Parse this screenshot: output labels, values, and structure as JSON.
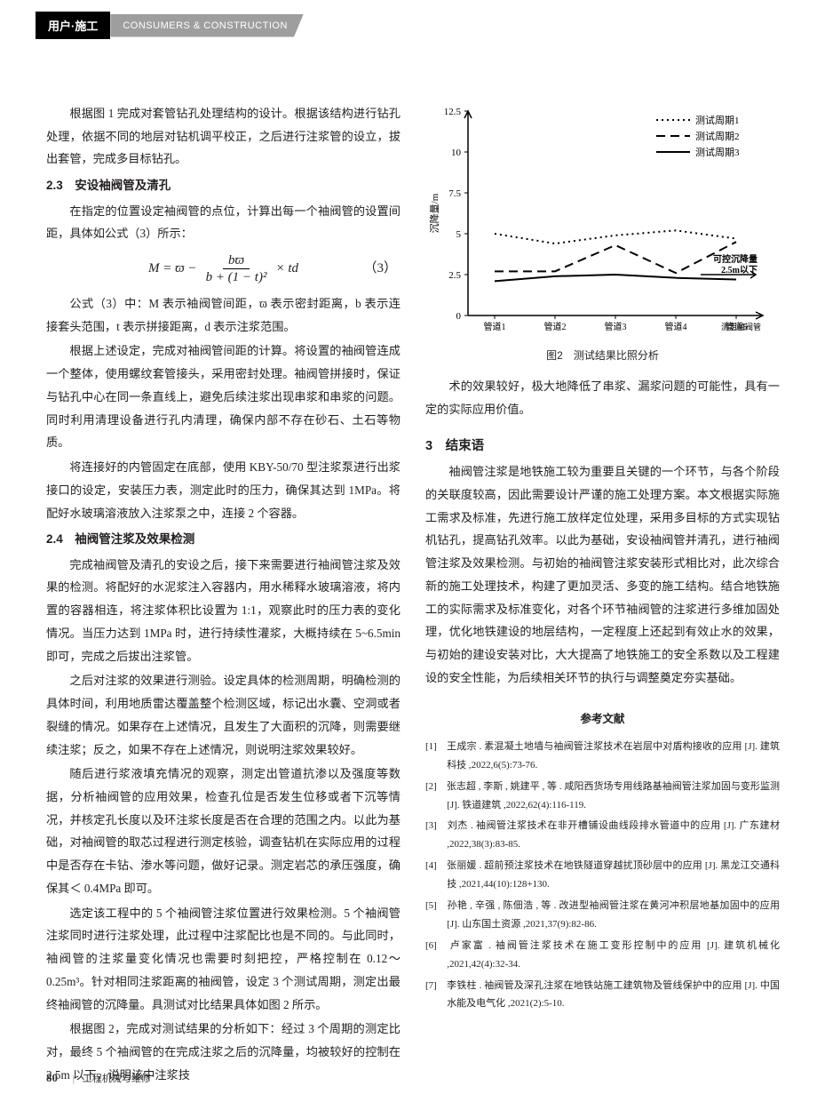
{
  "header": {
    "label": "用户·施工",
    "sub": "CONSUMERS & CONSTRUCTION"
  },
  "left_column": {
    "p1": "根据图 1 完成对套管钻孔处理结构的设计。根据该结构进行钻孔处理，依据不同的地层对钻机调平校正，之后进行注浆管的设立，拔出套管，完成多目标钻孔。",
    "h23": "2.3　安设袖阀管及清孔",
    "p2": "在指定的位置设定袖阀管的点位，计算出每一个袖阀管的设置间距，具体如公式（3）所示：",
    "formula": {
      "lhs": "M = ϖ −",
      "num": "bϖ",
      "den": "b + (1 − t)²",
      "tail": " × td",
      "num_label": "（3）"
    },
    "p3": "公式（3）中：M 表示袖阀管间距，ϖ 表示密封距离，b 表示连接套头范围，t 表示拼接距离，d 表示注浆范围。",
    "p4": "根据上述设定，完成对袖阀管间距的计算。将设置的袖阀管连成一个整体，使用螺纹套管接头，采用密封处理。袖阀管拼接时，保证与钻孔中心在同一条直线上，避免后续注浆出现串浆和串浆的问题。同时利用清理设备进行孔内清理，确保内部不存在砂石、土石等物质。",
    "p5": "将连接好的内管固定在底部，使用 KBY-50/70 型注浆泵进行出浆接口的设定，安装压力表，测定此时的压力，确保其达到 1MPa。将配好水玻璃溶液放入注浆泵之中，连接 2 个容器。",
    "h24": "2.4　袖阀管注浆及效果检测",
    "p6": "完成袖阀管及清孔的安设之后，接下来需要进行袖阀管注浆及效果的检测。将配好的水泥浆注入容器内，用水稀释水玻璃溶液，将内置的容器相连，将注浆体积比设置为 1:1，观察此时的压力表的变化情况。当压力达到 1MPa 时，进行持续性灌浆，大概持续在 5~6.5min 即可，完成之后拔出注浆管。",
    "p7": "之后对注浆的效果进行测验。设定具体的检测周期，明确检测的具体时间，利用地质雷达覆盖整个检测区域，标记出水囊、空洞或者裂缝的情况。如果存在上述情况，且发生了大面积的沉降，则需要继续注浆；反之，如果不存在上述情况，则说明注浆效果较好。",
    "p8": "随后进行浆液填充情况的观察，测定出管道抗渗以及强度等数据，分析袖阀管的应用效果，检查孔位是否发生位移或者下沉等情况，并核定孔长度以及环注浆长度是否在合理的范围之内。以此为基础，对袖阀管的取芯过程进行测定核验，调查钻机在实际应用的过程中是否存在卡钻、渗水等问题，做好记录。测定岩芯的承压强度，确保其＜ 0.4MPa 即可。",
    "p9": "选定该工程中的 5 个袖阀管注浆位置进行效果检测。5 个袖阀管注浆同时进行注浆处理，此过程中注浆配比也是不同的。与此同时，袖阀管的注浆量变化情况也需要时刻把控，严格控制在 0.12～0.25m³。针对相同注浆距离的袖阀管，设定 3 个测试周期，测定出最终袖阀管的沉降量。具测试对比结果具体如图 2 所示。",
    "p10": "根据图 2，完成对测试结果的分析如下：经过 3 个周期的测定比对，最终 5 个袖阀管的在完成注浆之后的沉降量，均被较好的控制在 2.5m 以下，说明该中注浆技"
  },
  "right_column": {
    "chart": {
      "caption": "图2　测试结果比照分析",
      "y_title": "沉降量/m",
      "y_ticks": [
        "0",
        "2.5",
        "5",
        "7.5",
        "10",
        "12.5"
      ],
      "x_ticks": [
        "管道1",
        "管道2",
        "管道3",
        "管道4",
        "管道5"
      ],
      "x_right_label": "测定袖阀管",
      "threshold_label": "可控沉降量 2.5m以下",
      "legend": [
        "测试周期1",
        "测试周期2",
        "测试周期3"
      ],
      "colors": {
        "axis": "#000000",
        "grid": "#ffffff",
        "series1": "#000000",
        "series2": "#000000",
        "series3": "#000000"
      },
      "series1_style": "dotted",
      "series2_style": "dashed",
      "series3_style": "solid",
      "line_width": 2,
      "ylim": [
        0,
        12.5
      ],
      "series1_values": [
        5.0,
        4.4,
        4.9,
        5.2,
        4.7
      ],
      "series2_values": [
        2.7,
        2.7,
        4.3,
        2.6,
        4.5
      ],
      "series3_values": [
        2.1,
        2.4,
        2.5,
        2.3,
        2.2
      ],
      "threshold": 2.5
    },
    "p_cont": "术的效果较好，极大地降低了串浆、漏浆问题的可能性，具有一定的实际应用价值。",
    "h3": "3　结束语",
    "p_end": "袖阀管注浆是地铁施工较为重要且关键的一个环节，与各个阶段的关联度较高，因此需要设计严谨的施工处理方案。本文根据实际施工需求及标准，先进行施工放样定位处理，采用多目标的方式实现钻机钻孔，提高钻孔效率。以此为基础，安设袖阀管并清孔，进行袖阀管注浆及效果检测。与初始的袖阀管注浆安装形式相比对，此次综合新的施工处理技术，构建了更加灵活、多变的施工结构。结合地铁施工的实际需求及标准变化，对各个环节袖阀管的注浆进行多维加固处理，优化地铁建设的地层结构，一定程度上还起到有效止水的效果，与初始的建设安装对比，大大提高了地铁施工的安全系数以及工程建设的安全性能，为后续相关环节的执行与调整奠定夯实基础。",
    "refs_title": "参考文献",
    "refs": [
      "[1]　王成宗 . 素混凝土地墙与袖阀管注浆技术在岩层中对盾构接收的应用 [J]. 建筑科技 ,2022,6(5):73-76.",
      "[2]　张志超 , 李斯 , 姚建平 , 等 . 咸阳西货场专用线路基袖阀管注浆加固与变形监测 [J]. 铁道建筑 ,2022,62(4):116-119.",
      "[3]　刘杰 . 袖阀管注浆技术在非开槽铺设曲线段排水管道中的应用 [J]. 广东建材 ,2022,38(3):83-85.",
      "[4]　张丽媛 . 超前预注浆技术在地铁隧道穿越扰顶砂层中的应用 [J]. 黑龙江交通科技 ,2021,44(10):128+130.",
      "[5]　孙艳 , 辛强 , 陈佃浩 , 等 . 改进型袖阀管注浆在黄河冲积层地基加固中的应用 [J]. 山东国土资源 ,2021,37(9):82-86.",
      "[6]　卢家富 . 袖阀管注浆技术在施工变形控制中的应用 [J]. 建筑机械化 ,2021,42(4):32-34.",
      "[7]　李铁柱 . 袖阀管及深孔注浆在地铁站施工建筑物及管线保护中的应用 [J]. 中国水能及电气化 ,2021(2):5-10."
    ]
  },
  "footer": {
    "page": "80",
    "mag": "工程机械与维修"
  }
}
